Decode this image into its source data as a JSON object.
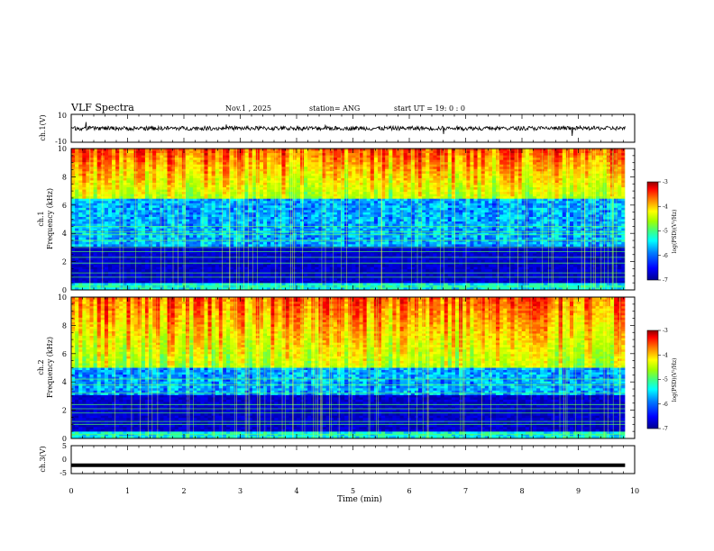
{
  "header": {
    "title": "VLF Spectra",
    "date": "Nov.1 , 2025",
    "station": "station= ANG",
    "start": "start UT = 19: 0 : 0"
  },
  "colors": {
    "cmap": [
      "#00008f",
      "#0000ff",
      "#0080ff",
      "#00ffff",
      "#40ff80",
      "#a0ff00",
      "#ffff00",
      "#ff8000",
      "#ff0000",
      "#8f0000"
    ],
    "trace": "#000000",
    "frame": "#000000"
  },
  "chart_data": [
    {
      "type": "line",
      "name": "ch1-waveform",
      "ylabel": "ch.1(V)",
      "ylim": [
        -10,
        10
      ],
      "yticks": [
        "10",
        "-10"
      ],
      "xlim": [
        0,
        10
      ],
      "description_values": {
        "mean": 0,
        "amplitude": 1.5
      },
      "x_end": 9.83
    },
    {
      "type": "heatmap",
      "name": "ch1-spectrogram",
      "ylabel_line1": "ch.1",
      "ylabel_line2": "Frequency (kHz)",
      "ylim": [
        0,
        10
      ],
      "yticks": [
        "0",
        "2",
        "4",
        "6",
        "8",
        "10"
      ],
      "xlim": [
        0,
        10
      ],
      "x_end": 9.83,
      "colorbar": {
        "range": [
          -7,
          -3
        ],
        "ticks": [
          "-3",
          "-4",
          "-5",
          "-6",
          "-7"
        ],
        "label": "log(PSD)(V²/Hz)"
      },
      "bands_khz": [
        0.25,
        0.9,
        1.2,
        1.9,
        2.3,
        2.7,
        3.0,
        3.5,
        3.9,
        4.1,
        4.5
      ],
      "high_activity_above_khz": 6.5
    },
    {
      "type": "heatmap",
      "name": "ch2-spectrogram",
      "ylabel_line1": "ch.2",
      "ylabel_line2": "Frequency (kHz)",
      "ylim": [
        0,
        10
      ],
      "yticks": [
        "0",
        "2",
        "4",
        "6",
        "8",
        "10"
      ],
      "xlim": [
        0,
        10
      ],
      "x_end": 9.83,
      "colorbar": {
        "range": [
          -7,
          -3
        ],
        "ticks": [
          "-3",
          "-4",
          "-5",
          "-6",
          "-7"
        ],
        "label": "log(PSD)(V²/Hz)"
      },
      "bands_khz": [
        0.3,
        1.0,
        1.2,
        1.8,
        2.1,
        2.4,
        3.2,
        3.8,
        4.2
      ],
      "high_activity_above_khz": 5.0
    },
    {
      "type": "line",
      "name": "ch3-waveform",
      "ylabel": "ch.3(V)",
      "ylim": [
        -5,
        5
      ],
      "yticks": [
        "5",
        "0",
        "-5"
      ],
      "xlim": [
        0,
        10
      ],
      "constant_value": -2,
      "x_end": 9.83
    }
  ],
  "xaxis": {
    "label": "Time (min)",
    "ticks": [
      "0",
      "1",
      "2",
      "3",
      "4",
      "5",
      "6",
      "7",
      "8",
      "9",
      "10"
    ]
  }
}
